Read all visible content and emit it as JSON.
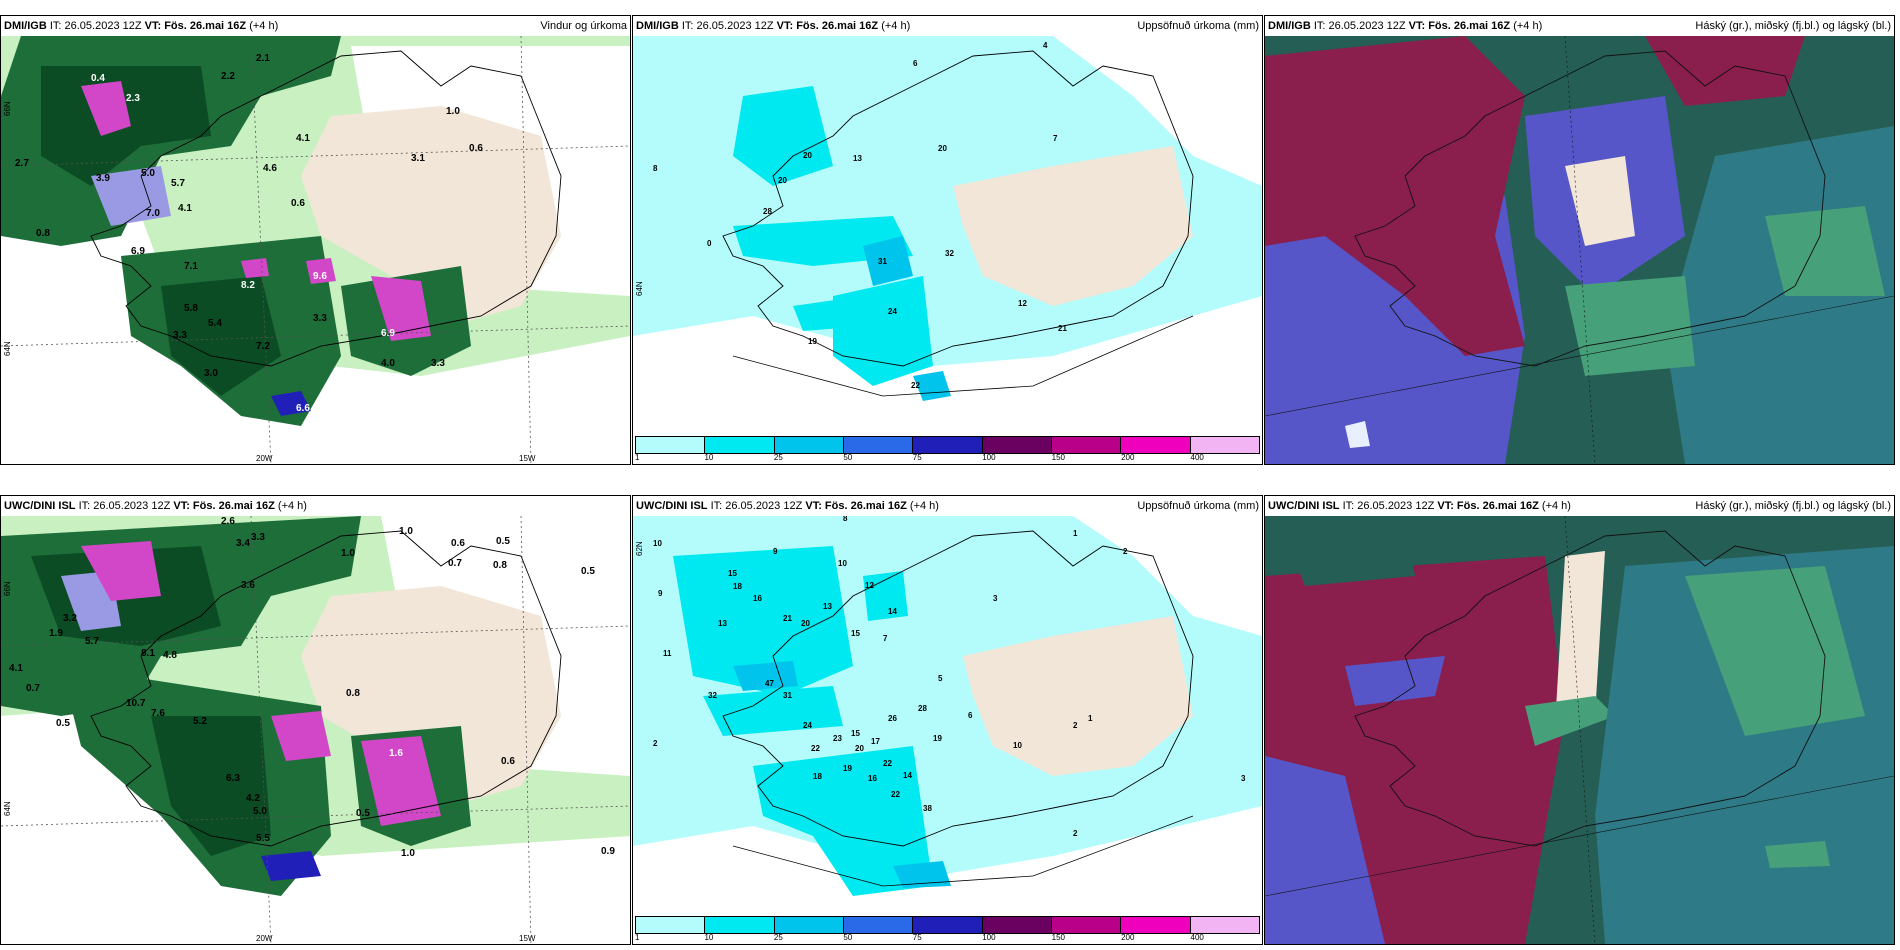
{
  "panels": {
    "p1": {
      "model": "DMI/IGB",
      "it": "IT: 26.05.2023 12Z",
      "vt": "VT: Fös. 26.mai 16Z",
      "offset": "(+4 h)",
      "field": "Vindur og úrkoma"
    },
    "p2": {
      "model": "DMI/IGB",
      "it": "IT: 26.05.2023 12Z",
      "vt": "VT: Fös. 26.mai 16Z",
      "offset": "(+4 h)",
      "field": "Uppsöfnuð úrkoma (mm)"
    },
    "p3": {
      "model": "DMI/IGB",
      "it": "IT: 26.05.2023 12Z",
      "vt": "VT: Fös. 26.mai 16Z",
      "offset": "(+4 h)",
      "field": "Háský (gr.), miðský (fj.bl.) og lágský (bl.)"
    },
    "p4": {
      "model": "UWC/DINI ISL",
      "it": "IT: 26.05.2023 12Z",
      "vt": "VT: Fös. 26.mai 16Z",
      "offset": "(+4 h)",
      "field": "Vindur og úrkoma"
    },
    "p5": {
      "model": "UWC/DINI ISL",
      "it": "IT: 26.05.2023 12Z",
      "vt": "VT: Fös. 26.mai 16Z",
      "offset": "(+4 h)",
      "field": "Uppsöfnuð úrkoma (mm)"
    },
    "p6": {
      "model": "UWC/DINI ISL",
      "it": "IT: 26.05.2023 12Z",
      "vt": "VT: Fös. 26.mai 16Z",
      "offset": "(+4 h)",
      "field": "Háský (gr.), miðský (fj.bl.) og lágský (bl.)"
    }
  },
  "grid_labels": {
    "lon1": "20W",
    "lon2": "15W",
    "lat1": "66N",
    "lat2": "64N",
    "lat3": "64N",
    "lat4": "62N"
  },
  "precip_labels_top": {
    "a": "0.4",
    "b": "2.3",
    "c": "2.2",
    "d": "2.1",
    "e": "2.7",
    "f": "3.9",
    "g": "5.0",
    "h": "5.7",
    "i": "7.0",
    "j": "4.1",
    "k": "0.8",
    "l": "6.9",
    "m": "7.1",
    "n": "5.8",
    "o": "5.4",
    "p": "3.3",
    "q": "3.0",
    "r": "7.2",
    "s": "3.3",
    "t": "4.0",
    "u": "9.6",
    "v": "8.2",
    "w": "6.9",
    "x": "1.0",
    "y": "0.6",
    "z": "0.6",
    "aa": "4.6",
    "ab": "4.1",
    "ac": "3.1",
    "ad": "6.6",
    "ae": "3.3"
  },
  "accum_labels_top": {
    "a": "6",
    "b": "4",
    "c": "8",
    "d": "7",
    "e": "20",
    "f": "13",
    "g": "20",
    "h": "28",
    "i": "20",
    "j": "31",
    "k": "32",
    "l": "24",
    "m": "19",
    "n": "12",
    "o": "22",
    "p": "21",
    "q": "0"
  },
  "precip_labels_bottom": {
    "a": "2.6",
    "b": "3.3",
    "c": "1.0",
    "d": "0.5",
    "e": "0.6",
    "f": "3.4",
    "g": "1.0",
    "h": "0.7",
    "i": "0.8",
    "j": "0.5",
    "k": "3.6",
    "l": "1.9",
    "m": "3.2",
    "n": "5.7",
    "o": "8.1",
    "p": "4.8",
    "q": "10.7",
    "r": "7.6",
    "s": "5.2",
    "t": "6.3",
    "u": "4.2",
    "v": "5.0",
    "w": "5.5",
    "x": "1.6",
    "y": "0.5",
    "z": "0.9",
    "aa": "0.6",
    "ab": "1.0",
    "ac": "0.8",
    "ad": "4.1",
    "ae": "0.7",
    "af": "0.5"
  },
  "accum_labels_bottom": {
    "a": "8",
    "b": "10",
    "c": "9",
    "d": "15",
    "e": "13",
    "f": "16",
    "g": "18",
    "h": "10",
    "i": "12",
    "j": "21",
    "k": "20",
    "l": "13",
    "m": "14",
    "n": "15",
    "o": "7",
    "p": "11",
    "q": "47",
    "r": "31",
    "s": "32",
    "t": "24",
    "u": "23",
    "v": "15",
    "w": "20",
    "x": "22",
    "y": "17",
    "z": "22",
    "aa": "18",
    "ab": "19",
    "ac": "16",
    "ad": "14",
    "ae": "22",
    "af": "38",
    "ag": "1",
    "ah": "2",
    "ai": "3",
    "aj": "6",
    "ak": "10",
    "al": "19",
    "am": "26",
    "an": "28",
    "ao": "2",
    "ap": "1",
    "aq": "3",
    "ar": "2",
    "as": "9",
    "at": "5",
    "au": "2"
  },
  "colorbar": {
    "ticks": [
      "1",
      "10",
      "25",
      "50",
      "75",
      "100",
      "150",
      "200",
      "400"
    ],
    "colors": [
      "#b4fcfc",
      "#00e8f0",
      "#00c4ec",
      "#2a6ae8",
      "#2020b8",
      "#6a0060",
      "#b80088",
      "#ee00bc",
      "#f2b4f2"
    ]
  },
  "colors": {
    "land": "#f2e6d8",
    "sea_light": "#b4fcfc",
    "green_light": "#c8f0c0",
    "green_mid": "#7ed07a",
    "green_dark": "#1e6e3a",
    "green_darkest": "#0c4c24",
    "purple_light": "#9a9ae4",
    "magenta": "#d246c8",
    "cloud_dark": "#255e54",
    "cloud_teal": "#2e7a86",
    "cloud_maroon": "#8a1e4c",
    "cloud_blue": "#5656c8",
    "cloud_green": "#46a07a"
  }
}
